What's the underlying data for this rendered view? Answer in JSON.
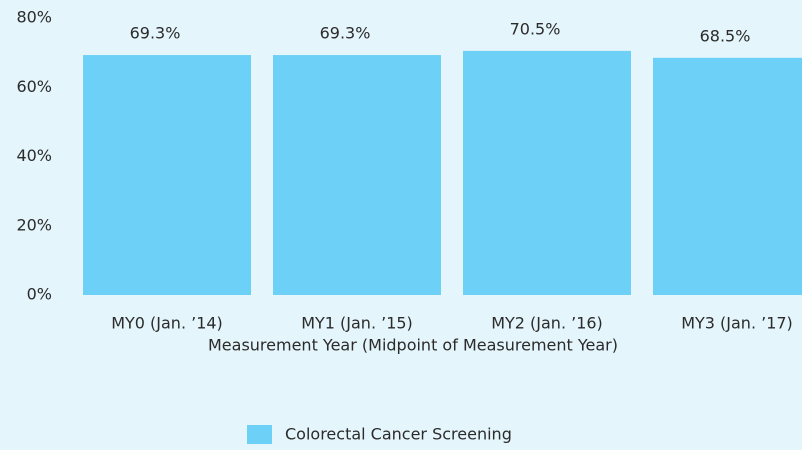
{
  "chart_data": {
    "type": "bar",
    "x_label": "Measurement Year (Midpoint of Measurement Year)",
    "categories": [
      "MY0 (Jan. ’14)",
      "MY1 (Jan. ’15)",
      "MY2 (Jan. ’16)",
      "MY3 (Jan. ’17)"
    ],
    "series": [
      {
        "name": "Colorectal Cancer Screening",
        "color": "#6dd0f6",
        "values": [
          69.3,
          69.3,
          70.5,
          68.5
        ],
        "value_labels": [
          "69.3%",
          "69.3%",
          "70.5%",
          "68.5%"
        ]
      }
    ],
    "ylim": [
      0,
      80
    ],
    "yticks": [
      {
        "value": 0,
        "label": "0%"
      },
      {
        "value": 20,
        "label": "20%"
      },
      {
        "value": 40,
        "label": "40%"
      },
      {
        "value": 60,
        "label": "60%"
      },
      {
        "value": 80,
        "label": "80%"
      }
    ],
    "grid": false,
    "legend": "bottom"
  }
}
